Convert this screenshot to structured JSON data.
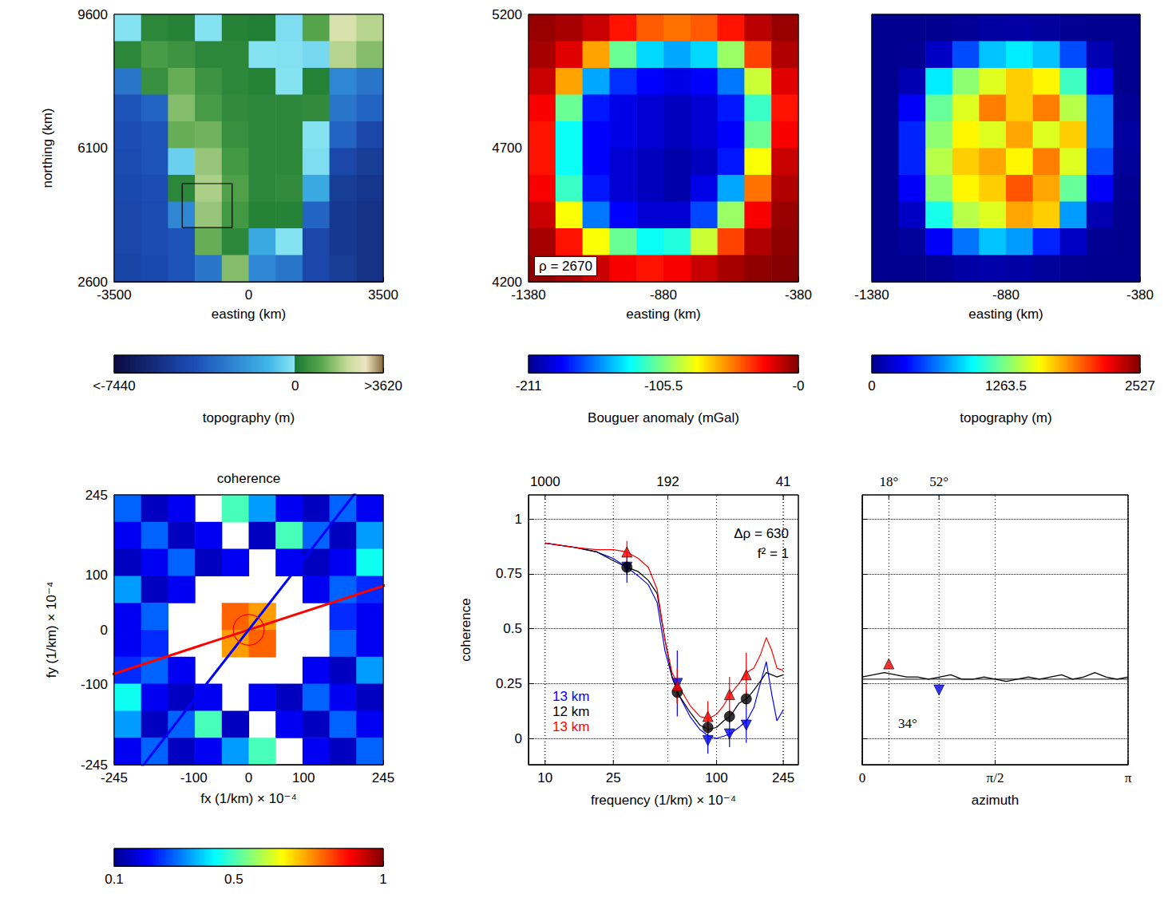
{
  "chart_data": [
    {
      "type": "heatmap",
      "x_label": "easting (km)",
      "y_label": "northing (km)",
      "xlim": [
        -3500,
        3500
      ],
      "xticks": [
        -3500,
        0,
        3500
      ],
      "ylim": [
        2600,
        9600
      ],
      "yticks": [
        2600,
        6100,
        9600
      ],
      "x": [
        -3150,
        -2450,
        -1750,
        -1050,
        -350,
        350,
        1050,
        1750,
        2450,
        3150
      ],
      "y": [
        9250,
        8550,
        7850,
        7150,
        6450,
        5750,
        5050,
        4350,
        3650,
        2950
      ],
      "z": [
        [
          -100,
          300,
          200,
          -100,
          200,
          100,
          -200,
          1000,
          2500,
          2000
        ],
        [
          300,
          800,
          600,
          300,
          300,
          -100,
          -150,
          -300,
          2000,
          1500
        ],
        [
          -3000,
          500,
          1200,
          600,
          300,
          200,
          -100,
          200,
          -2500,
          -3000
        ],
        [
          -4000,
          -3500,
          1500,
          800,
          400,
          300,
          300,
          400,
          -3000,
          -3500
        ],
        [
          -4200,
          -4000,
          1200,
          1300,
          500,
          300,
          300,
          -100,
          -3500,
          -4500
        ],
        [
          -4300,
          -4000,
          -500,
          1700,
          700,
          300,
          300,
          -200,
          -4500,
          -5000
        ],
        [
          -4400,
          -4200,
          300,
          1900,
          900,
          300,
          400,
          -1500,
          -5000,
          -5300
        ],
        [
          -4500,
          -4300,
          -2500,
          1700,
          700,
          200,
          200,
          -3500,
          -5200,
          -5500
        ],
        [
          -4500,
          -4300,
          -4000,
          1200,
          300,
          -1500,
          -100,
          -4500,
          -5200,
          -5500
        ],
        [
          -4600,
          -4400,
          -4000,
          -3000,
          1500,
          -2500,
          -3000,
          -4500,
          -5000,
          -5500
        ]
      ],
      "box": {
        "x": [
          -1730,
          -430
        ],
        "y": [
          4020,
          5170
        ]
      },
      "colorbar": {
        "label": "topography (m)",
        "color": "topography",
        "range": [
          -7440,
          3620
        ],
        "ticks": [
          {
            "value": -7440,
            "label": "<-7440"
          },
          0,
          {
            "value": 3620,
            "label": ">3620"
          }
        ]
      }
    },
    {
      "type": "heatmap",
      "x_label": "easting (km)",
      "xlim": [
        -1380,
        -380
      ],
      "xticks": [
        -1380,
        -880,
        -380
      ],
      "ylim": [
        4200,
        5200
      ],
      "yticks": [
        4200,
        4700,
        5200
      ],
      "x": [
        -1330,
        -1230,
        -1130,
        -1030,
        -930,
        -830,
        -730,
        -630,
        -530,
        -430
      ],
      "y": [
        5150,
        5050,
        4950,
        4850,
        4750,
        4650,
        4550,
        4450,
        4350,
        4250
      ],
      "z": [
        [
          -5,
          -8,
          -15,
          -30,
          -45,
          -50,
          -45,
          -30,
          -12,
          -5
        ],
        [
          -8,
          -20,
          -60,
          -110,
          -140,
          -150,
          -140,
          -100,
          -40,
          -10
        ],
        [
          -15,
          -60,
          -150,
          -175,
          -185,
          -190,
          -185,
          -160,
          -90,
          -20
        ],
        [
          -25,
          -110,
          -180,
          -190,
          -195,
          -200,
          -195,
          -180,
          -120,
          -30
        ],
        [
          -30,
          -130,
          -185,
          -190,
          -195,
          -200,
          -195,
          -185,
          -110,
          -25
        ],
        [
          -30,
          -130,
          -185,
          -195,
          -200,
          -205,
          -200,
          -180,
          -80,
          -15
        ],
        [
          -25,
          -120,
          -180,
          -195,
          -200,
          -205,
          -190,
          -150,
          -50,
          -10
        ],
        [
          -15,
          -80,
          -160,
          -185,
          -195,
          -195,
          -170,
          -100,
          -25,
          -5
        ],
        [
          -8,
          -30,
          -80,
          -110,
          -130,
          -125,
          -90,
          -40,
          -10,
          -3
        ],
        [
          -3,
          -8,
          -15,
          -25,
          -30,
          -25,
          -15,
          -8,
          -3,
          -1
        ]
      ],
      "annotations": [
        "ρ = 2670"
      ],
      "colorbar": {
        "label": "Bouguer anomaly (mGal)",
        "color": "jet",
        "range": [
          -211,
          0
        ],
        "ticks": [
          -211,
          -105.5,
          {
            "value": 0,
            "label": "-0"
          }
        ]
      }
    },
    {
      "type": "heatmap",
      "x_label": "easting (km)",
      "tick_labels": "x",
      "xlim": [
        -1380,
        -380
      ],
      "xticks": [
        -1380,
        -880,
        -380
      ],
      "ylim": [
        4200,
        5200
      ],
      "yticks": [
        4200,
        4700,
        5200
      ],
      "x": [
        -1330,
        -1230,
        -1130,
        -1030,
        -930,
        -830,
        -730,
        -630,
        -530,
        -430
      ],
      "y": [
        5150,
        5050,
        4950,
        4850,
        4750,
        4650,
        4550,
        4450,
        4350,
        4250
      ],
      "z": [
        [
          0,
          0,
          0,
          20,
          50,
          60,
          40,
          10,
          0,
          0
        ],
        [
          0,
          10,
          150,
          500,
          800,
          900,
          800,
          500,
          100,
          0
        ],
        [
          0,
          100,
          900,
          1300,
          1500,
          1700,
          1600,
          1100,
          300,
          0
        ],
        [
          0,
          300,
          1200,
          1500,
          1900,
          1700,
          1900,
          1400,
          600,
          20
        ],
        [
          0,
          400,
          1300,
          1600,
          1500,
          1800,
          1500,
          1700,
          600,
          50
        ],
        [
          0,
          400,
          1400,
          1700,
          1800,
          1600,
          1900,
          1500,
          500,
          30
        ],
        [
          0,
          300,
          1300,
          1600,
          1700,
          2000,
          1800,
          1200,
          300,
          10
        ],
        [
          0,
          150,
          1000,
          1400,
          1500,
          1800,
          1700,
          700,
          100,
          0
        ],
        [
          0,
          30,
          300,
          600,
          800,
          700,
          400,
          150,
          10,
          0
        ],
        [
          0,
          0,
          20,
          60,
          80,
          60,
          30,
          10,
          0,
          0
        ]
      ],
      "colorbar": {
        "label": "topography (m)",
        "color": "jet",
        "range": [
          0,
          2527
        ],
        "ticks": [
          0,
          1263.5,
          2527
        ]
      }
    },
    {
      "type": "heatmap",
      "title": "coherence",
      "x_label": "fx (1/km) × 10⁻⁴",
      "y_label": "fy (1/km) × 10⁻⁴",
      "xlim": [
        -245,
        245
      ],
      "xticks": [
        -245,
        -100,
        0,
        100,
        245
      ],
      "ylim": [
        -245,
        245
      ],
      "yticks": [
        -245,
        -100,
        0,
        100,
        245
      ],
      "x": [
        -220.5,
        -171.5,
        -122.5,
        -73.5,
        -24.5,
        24.5,
        73.5,
        122.5,
        171.5,
        220.5
      ],
      "y": [
        220.5,
        171.5,
        122.5,
        73.5,
        24.5,
        -24.5,
        -73.5,
        -122.5,
        -171.5,
        -220.5
      ],
      "z": [
        [
          0.3,
          0.15,
          0.2,
          null,
          0.5,
          0.35,
          0.2,
          0.15,
          0.3,
          0.2
        ],
        [
          0.2,
          0.3,
          0.15,
          0.2,
          null,
          0.15,
          0.5,
          0.3,
          0.15,
          0.35
        ],
        [
          0.15,
          0.2,
          0.3,
          0.15,
          0.2,
          null,
          0.2,
          0.15,
          0.2,
          0.45
        ],
        [
          0.35,
          0.15,
          0.2,
          null,
          null,
          null,
          null,
          0.2,
          0.3,
          0.25
        ],
        [
          0.2,
          0.3,
          null,
          null,
          0.8,
          0.75,
          null,
          null,
          0.25,
          0.2
        ],
        [
          0.2,
          0.25,
          null,
          null,
          0.75,
          0.8,
          null,
          null,
          0.3,
          0.2
        ],
        [
          0.25,
          0.3,
          0.2,
          null,
          null,
          null,
          null,
          0.2,
          0.15,
          0.35
        ],
        [
          0.45,
          0.2,
          0.15,
          0.2,
          null,
          0.2,
          0.15,
          0.3,
          0.2,
          0.15
        ],
        [
          0.35,
          0.15,
          0.3,
          0.5,
          0.15,
          null,
          0.2,
          0.15,
          0.3,
          0.2
        ],
        [
          0.2,
          0.3,
          0.15,
          0.2,
          0.35,
          0.5,
          null,
          0.2,
          0.15,
          0.3
        ]
      ],
      "lines": [
        {
          "angle": 18,
          "color": "red"
        },
        {
          "angle": 52,
          "color": "blue"
        }
      ],
      "circle": {
        "x": 0,
        "y": 0,
        "radius": 28,
        "color": "red"
      },
      "colorbar": {
        "color": "jet",
        "range": [
          0.1,
          1
        ],
        "ticks": [
          0.1,
          0.5,
          1
        ]
      }
    },
    {
      "type": "line",
      "log": "x",
      "grid": true,
      "legend": "lower left",
      "x_label": "frequency (1/km) × 10⁻⁴",
      "y_label": "coherence",
      "xlim": [
        8,
        300
      ],
      "xticks": [
        10,
        25,
        100,
        245
      ],
      "x2ticks": [
        {
          "value": 10,
          "label": "1000"
        },
        {
          "value": 52,
          "label": "192"
        },
        {
          "value": 245,
          "label": "41"
        }
      ],
      "ylim": [
        -0.12,
        1.11
      ],
      "yticks": [
        0,
        0.25,
        0.5,
        0.75,
        1
      ],
      "annotations": [
        "Δρ = 630",
        "f² = 1"
      ],
      "series": [
        {
          "name": "13 km",
          "color": "blue",
          "marker": "triangle-down",
          "x": [
            10,
            15,
            20,
            25,
            30,
            35,
            40,
            45,
            50,
            55,
            60,
            70,
            80,
            90,
            100,
            110,
            120,
            135,
            150,
            165,
            180,
            195,
            210,
            225,
            245
          ],
          "values": [
            0.89,
            0.87,
            0.85,
            0.82,
            0.78,
            0.74,
            0.7,
            0.62,
            0.4,
            0.28,
            0.2,
            0.1,
            0.04,
            0.01,
            0.0,
            0.01,
            0.02,
            0.05,
            0.08,
            0.14,
            0.25,
            0.35,
            0.2,
            0.08,
            0.13
          ],
          "points": {
            "x": [
              30,
              59,
              89,
              119,
              149
            ],
            "values": [
              0.78,
              0.25,
              -0.01,
              0.02,
              0.06
            ],
            "errors": [
              0.07,
              0.15,
              0.06,
              0.06,
              0.08
            ]
          }
        },
        {
          "name": "12 km",
          "color": "black",
          "marker": "circle",
          "x": [
            10,
            15,
            20,
            25,
            30,
            35,
            40,
            45,
            50,
            55,
            60,
            70,
            80,
            90,
            100,
            110,
            120,
            135,
            150,
            165,
            180,
            195,
            210,
            225,
            245
          ],
          "values": [
            0.89,
            0.87,
            0.85,
            0.81,
            0.78,
            0.76,
            0.72,
            0.66,
            0.45,
            0.28,
            0.2,
            0.12,
            0.06,
            0.04,
            0.05,
            0.08,
            0.1,
            0.16,
            0.18,
            0.22,
            0.26,
            0.3,
            0.29,
            0.28,
            0.29
          ],
          "points": {
            "x": [
              30,
              59,
              89,
              119,
              149
            ],
            "values": [
              0.78,
              0.21,
              0.05,
              0.1,
              0.18
            ],
            "errors": [
              0.03,
              0.05,
              0.03,
              0.03,
              0.04
            ]
          }
        },
        {
          "name": "13 km",
          "color": "red",
          "marker": "triangle-up",
          "x": [
            10,
            15,
            20,
            25,
            30,
            35,
            40,
            45,
            50,
            55,
            60,
            70,
            80,
            90,
            100,
            110,
            120,
            135,
            150,
            165,
            180,
            195,
            210,
            225,
            245
          ],
          "values": [
            0.89,
            0.87,
            0.86,
            0.86,
            0.85,
            0.82,
            0.78,
            0.68,
            0.45,
            0.3,
            0.24,
            0.15,
            0.1,
            0.09,
            0.11,
            0.15,
            0.2,
            0.25,
            0.3,
            0.32,
            0.38,
            0.46,
            0.4,
            0.32,
            0.31
          ],
          "points": {
            "x": [
              30,
              59,
              89,
              119,
              149
            ],
            "values": [
              0.85,
              0.24,
              0.1,
              0.2,
              0.29
            ],
            "errors": [
              0.05,
              0.08,
              0.07,
              0.08,
              0.1
            ]
          }
        }
      ]
    },
    {
      "type": "line",
      "grid": true,
      "tick_labels": "x",
      "x_label": "azimuth",
      "xlim": [
        0,
        3.1416
      ],
      "xticks": [
        0,
        {
          "value": 1.5708,
          "label": "π/2"
        },
        {
          "value": 3.1416,
          "label": "π"
        }
      ],
      "x2ticks": [
        {
          "value": 0.3142,
          "label": "18°"
        },
        {
          "value": 0.9076,
          "label": "52°"
        }
      ],
      "ylim": [
        -0.12,
        1.11
      ],
      "yticks": [
        0,
        0.25,
        0.5,
        0.75,
        1
      ],
      "annotations": [
        "34°"
      ],
      "mean": 0.27,
      "series": [
        {
          "color": "black",
          "x": [
            0,
            0.1309,
            0.2618,
            0.3927,
            0.5236,
            0.6545,
            0.7854,
            0.9163,
            1.0472,
            1.1781,
            1.309,
            1.4399,
            1.5708,
            1.7017,
            1.8326,
            1.9635,
            2.0944,
            2.2253,
            2.3562,
            2.4871,
            2.618,
            2.7489,
            2.8798,
            3.0107,
            3.1416
          ],
          "values": [
            0.28,
            0.29,
            0.3,
            0.29,
            0.28,
            0.28,
            0.27,
            0.28,
            0.29,
            0.27,
            0.27,
            0.28,
            0.27,
            0.26,
            0.27,
            0.28,
            0.27,
            0.28,
            0.29,
            0.27,
            0.28,
            0.3,
            0.28,
            0.27,
            0.28
          ]
        },
        {
          "color": "red",
          "marker": "triangle-up",
          "points": {
            "x": [
              0.3142
            ],
            "values": [
              0.34
            ]
          }
        },
        {
          "color": "blue",
          "marker": "triangle-down",
          "points": {
            "x": [
              0.9076
            ],
            "values": [
              0.22
            ]
          }
        }
      ]
    }
  ]
}
